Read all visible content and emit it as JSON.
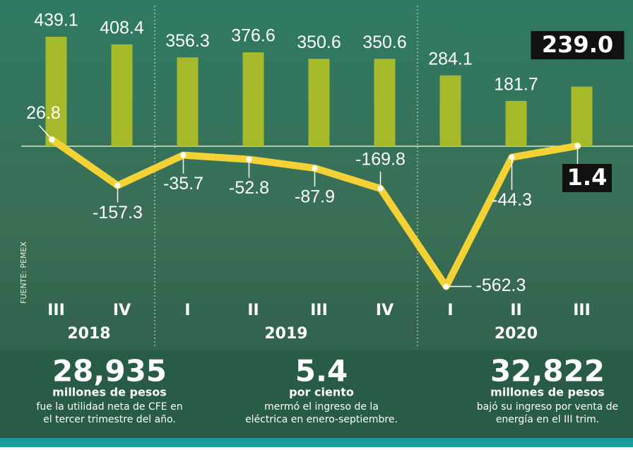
{
  "chart_data": {
    "type": "bar-line",
    "source": "FUENTE: PEMEX",
    "groups": [
      {
        "year": "2018",
        "quarters": [
          "III",
          "IV"
        ]
      },
      {
        "year": "2019",
        "quarters": [
          "I",
          "II",
          "III",
          "IV"
        ]
      },
      {
        "year": "2020",
        "quarters": [
          "I",
          "II",
          "III"
        ]
      }
    ],
    "series": [
      {
        "type": "bar",
        "color": "#a6ba2c",
        "values": [
          439.1,
          408.4,
          356.3,
          376.6,
          350.6,
          350.6,
          284.1,
          181.7,
          239.0
        ],
        "value_labels": [
          "439.1",
          "408.4",
          "356.3",
          "376.6",
          "350.6",
          "350.6",
          "284.1",
          "181.7",
          "239.0"
        ]
      },
      {
        "type": "line",
        "color": "#f4d236",
        "values": [
          26.8,
          -157.3,
          -35.7,
          -52.8,
          -87.9,
          -169.8,
          -562.3,
          -44.3,
          1.4
        ],
        "value_labels": [
          "26.8",
          "-157.3",
          "-35.7",
          "-52.8",
          "-87.9",
          "-169.8",
          "-562.3",
          "-44.3",
          "1.4"
        ]
      }
    ],
    "highlight_last": true
  },
  "stats": [
    {
      "number": "28,935",
      "unit": "millones de pesos",
      "text": [
        "fue la utilidad neta de CFE en",
        "el tercer trimestre del año."
      ]
    },
    {
      "number": "5.4",
      "unit": "por ciento",
      "text": [
        "mermó el ingreso de la",
        "eléctrica en enero-septiembre."
      ]
    },
    {
      "number": "32,822",
      "unit": "millones de pesos",
      "text": [
        "bajó su ingreso por venta de",
        "energía en el III trim."
      ]
    }
  ]
}
